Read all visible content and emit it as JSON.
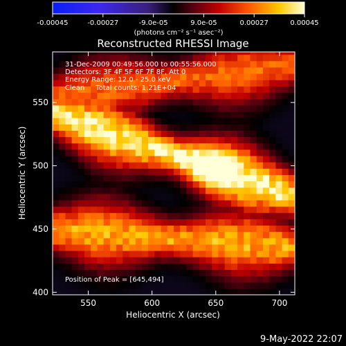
{
  "colorbar": {
    "ticks": [
      "-0.00045",
      "-0.00027",
      "-9.0e-05",
      "9.0e-05",
      "0.00027",
      "0.00045"
    ],
    "units": "(photons cm⁻² s⁻¹ asec⁻²)",
    "min": -0.00045,
    "max": 0.00045
  },
  "image": {
    "title": "Reconstructed RHESSI Image",
    "annotations": [
      "31-Dec-2009 00:49:56.000 to 00:55:56.000",
      "Detectors: 3F 4F 5F 6F 7F 8F, Att 0",
      "Energy Range: 12.0 - 25.0 keV",
      "Clean     Total counts: 1.21E+04"
    ],
    "peak_label": "Position of Peak = [645,494]"
  },
  "axes": {
    "xlabel": "Heliocentric X (arcsec)",
    "ylabel": "Heliocentric Y (arcsec)",
    "x_ticks": [
      "550",
      "600",
      "650",
      "700"
    ],
    "y_ticks": [
      "400",
      "450",
      "500",
      "550"
    ]
  },
  "footer": {
    "date": "9-May-2022 22:07"
  },
  "chart_data": {
    "type": "heatmap",
    "title": "Reconstructed RHESSI Image",
    "xlabel": "Heliocentric X (arcsec)",
    "ylabel": "Heliocentric Y (arcsec)",
    "xlim": [
      522,
      712
    ],
    "ylim": [
      398,
      590
    ],
    "x_ticks": [
      550,
      600,
      650,
      700
    ],
    "y_ticks": [
      400,
      450,
      500,
      550
    ],
    "colorbar_range": [
      -0.00045,
      0.00045
    ],
    "colormap": "blue-black-red-yellow-white",
    "peak_position": [
      645,
      494
    ],
    "bands": [
      {
        "name": "",
        "x0": 522,
        "y0": 552,
        "x1": 712,
        "y1": 578,
        "intensity": 0.6
      },
      {
        "name": "",
        "x0": 522,
        "y0": 538,
        "x1": 712,
        "y1": 473,
        "intensity": 0.95
      },
      {
        "name": "",
        "x0": 522,
        "y0": 447,
        "x1": 712,
        "y1": 433,
        "intensity": 0.75
      }
    ]
  }
}
